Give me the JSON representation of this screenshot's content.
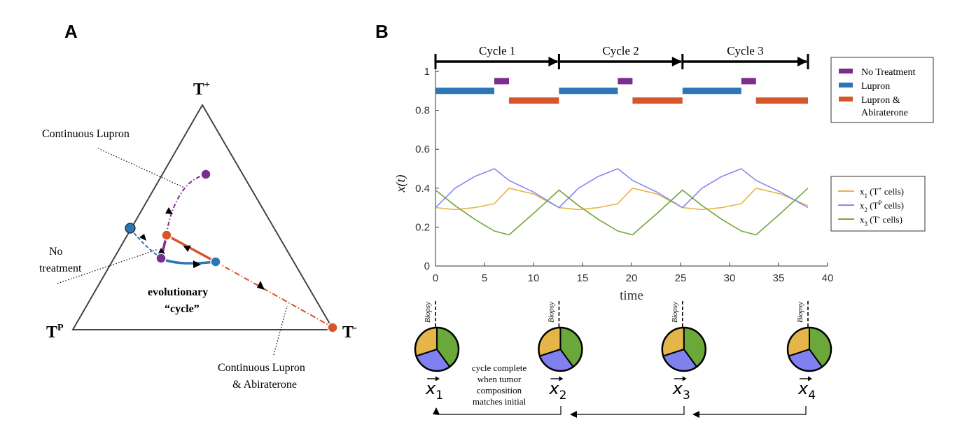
{
  "colors": {
    "purple": "#7B2D8E",
    "blue": "#2E75B6",
    "orange": "#D4562A",
    "yellow": "#E6B54A",
    "lavender": "#8888F0",
    "green": "#73A838",
    "pie_yellow": "#E6B54A",
    "pie_blue": "#8080EE",
    "pie_green": "#6AA83A"
  },
  "panelA": {
    "letter": "A",
    "vertex_top": "T",
    "vertex_top_sup": "+",
    "vertex_left": "T",
    "vertex_left_sup": "P",
    "vertex_right": "T",
    "vertex_right_sup": "-",
    "ann_continuous_lupron": "Continuous Lupron",
    "ann_no_treatment_1": "No",
    "ann_no_treatment_2": "treatment",
    "ann_evolutionary": "evolutionary",
    "ann_cycle": "“cycle”",
    "ann_lupron_abi_1": "Continuous Lupron",
    "ann_lupron_abi_2": "& Abiraterone"
  },
  "panelB": {
    "letter": "B",
    "cycles": [
      "Cycle 1",
      "Cycle 2",
      "Cycle 3"
    ],
    "legend_treatment": [
      "No Treatment",
      "Lupron",
      "Lupron &",
      "Abiraterone"
    ],
    "legend_series": [
      {
        "main": "x",
        "sub": "1",
        "rest": " (T",
        "sup": "+",
        "end": " cells)"
      },
      {
        "main": "x",
        "sub": "2",
        "rest": " (T",
        "sup": "P",
        "end": " cells)"
      },
      {
        "main": "x",
        "sub": "3",
        "rest": " (T",
        "sup": "-",
        "end": " cells)"
      }
    ],
    "biopsy": "Biopsy",
    "states": [
      "x",
      "x",
      "x",
      "x"
    ],
    "state_subs": [
      "1",
      "2",
      "3",
      "4"
    ],
    "cycle_note": [
      "cycle complete",
      "when tumor",
      "composition",
      "matches initial"
    ]
  },
  "chart_data": {
    "type": "line",
    "xlabel": "time",
    "ylabel": "x(t)",
    "xlim": [
      0,
      40
    ],
    "ylim": [
      0,
      1
    ],
    "xticks": [
      0,
      5,
      10,
      15,
      20,
      25,
      30,
      35,
      40
    ],
    "yticks": [
      0,
      0.2,
      0.4,
      0.6,
      0.8,
      1
    ],
    "ytick_labels": [
      "0",
      "0.2",
      "0.4",
      "0.6",
      "0.8",
      "1"
    ],
    "series": [
      {
        "name": "x1 (T+ cells)",
        "color": "#E6B54A",
        "x": [
          0,
          2,
          4,
          6,
          7.5,
          10,
          12.6,
          14.6,
          16.6,
          18.6,
          20.1,
          22.6,
          25.2,
          27.2,
          29.2,
          31.2,
          32.7,
          35.2,
          38
        ],
        "y": [
          0.3,
          0.29,
          0.3,
          0.32,
          0.4,
          0.37,
          0.3,
          0.29,
          0.3,
          0.32,
          0.4,
          0.37,
          0.3,
          0.29,
          0.3,
          0.32,
          0.4,
          0.37,
          0.31
        ]
      },
      {
        "name": "x2 (TP cells)",
        "color": "#8888F0",
        "x": [
          0,
          2,
          4,
          6,
          7.5,
          10,
          12.6,
          14.6,
          16.6,
          18.6,
          20.1,
          22.6,
          25.2,
          27.2,
          29.2,
          31.2,
          32.7,
          35.2,
          38
        ],
        "y": [
          0.3,
          0.4,
          0.46,
          0.5,
          0.44,
          0.38,
          0.3,
          0.4,
          0.46,
          0.5,
          0.44,
          0.38,
          0.3,
          0.4,
          0.46,
          0.5,
          0.44,
          0.38,
          0.3
        ]
      },
      {
        "name": "x3 (T- cells)",
        "color": "#73A838",
        "x": [
          0,
          2,
          4,
          6,
          7.5,
          10,
          12.6,
          14.6,
          16.6,
          18.6,
          20.1,
          22.6,
          25.2,
          27.2,
          29.2,
          31.2,
          32.7,
          35.2,
          38
        ],
        "y": [
          0.39,
          0.31,
          0.24,
          0.18,
          0.16,
          0.27,
          0.39,
          0.31,
          0.24,
          0.18,
          0.16,
          0.27,
          0.39,
          0.31,
          0.24,
          0.18,
          0.16,
          0.27,
          0.4
        ]
      }
    ],
    "treatment_bars": [
      {
        "treatment": "Lupron",
        "level": 0.9,
        "start": 0,
        "end": 6
      },
      {
        "treatment": "No Treatment",
        "level": 0.95,
        "start": 6,
        "end": 7.5
      },
      {
        "treatment": "Lupron & Abiraterone",
        "level": 0.85,
        "start": 7.5,
        "end": 12.6
      },
      {
        "treatment": "Lupron",
        "level": 0.9,
        "start": 12.6,
        "end": 18.6
      },
      {
        "treatment": "No Treatment",
        "level": 0.95,
        "start": 18.6,
        "end": 20.1
      },
      {
        "treatment": "Lupron & Abiraterone",
        "level": 0.85,
        "start": 20.1,
        "end": 25.2
      },
      {
        "treatment": "Lupron",
        "level": 0.9,
        "start": 25.2,
        "end": 31.2
      },
      {
        "treatment": "No Treatment",
        "level": 0.95,
        "start": 31.2,
        "end": 32.7
      },
      {
        "treatment": "Lupron & Abiraterone",
        "level": 0.85,
        "start": 32.7,
        "end": 38
      }
    ],
    "cycle_boundaries": [
      0,
      12.6,
      25.2,
      38
    ],
    "pies": [
      {
        "time": 0,
        "fractions": [
          0.3,
          0.3,
          0.4
        ]
      },
      {
        "time": 12.6,
        "fractions": [
          0.3,
          0.3,
          0.4
        ]
      },
      {
        "time": 25.2,
        "fractions": [
          0.3,
          0.3,
          0.4
        ]
      },
      {
        "time": 38,
        "fractions": [
          0.3,
          0.3,
          0.4
        ]
      }
    ]
  }
}
